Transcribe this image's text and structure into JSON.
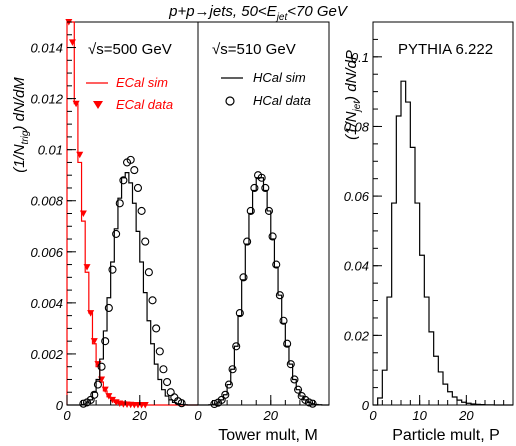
{
  "figure": {
    "title_parts": [
      "p+p→jets, 50<E",
      "jet",
      "<70 GeV"
    ],
    "left_ylabel_parts": [
      "(1/N",
      "trig",
      ") dN/dM"
    ],
    "right_ylabel_parts": [
      "(1/N",
      "jet",
      ") dN/dP"
    ],
    "xlabel_tower": "Tower mult, M",
    "xlabel_particle": "Particle mult, P",
    "colors": {
      "ecal": "#ff0000",
      "other": "#000000"
    }
  },
  "chart_data": [
    {
      "type": "line",
      "panel": "ECal / HCal tower multiplicity",
      "energy_labels": [
        "√s=500 GeV",
        "√s=510 GeV"
      ],
      "xlim": [
        0,
        36
      ],
      "ylim": [
        0,
        0.015
      ],
      "yticks": [
        0,
        0.002,
        0.004,
        0.006,
        0.008,
        0.01,
        0.012,
        0.014
      ],
      "ytick_labels": [
        "0",
        "0.002",
        "0.004",
        "0.006",
        "0.008",
        "0.01",
        "0.012",
        "0.014"
      ],
      "xticks": [
        0,
        20
      ],
      "xtick_labels": [
        "0",
        "20"
      ],
      "series": [
        {
          "name": "ECal sim",
          "style": "step",
          "color": "#ff0000",
          "x": [
            0,
            1,
            2,
            3,
            4,
            5,
            6,
            7,
            8,
            9,
            10,
            11,
            12,
            13,
            14,
            15,
            16,
            17,
            18,
            19,
            20,
            21,
            22,
            23,
            24,
            25,
            26,
            27,
            28,
            29,
            30,
            31,
            32,
            33,
            34,
            35
          ],
          "y": [
            0.015,
            0.015,
            0.0118,
            0.0095,
            0.0072,
            0.0052,
            0.0036,
            0.0024,
            0.0015,
            0.0009,
            0.00055,
            0.00032,
            0.00018,
            0.0001,
            6e-05,
            3e-05,
            2e-05,
            1e-05,
            0,
            0,
            0,
            0,
            0,
            0,
            0,
            0,
            0,
            0,
            0,
            0,
            0,
            0,
            0,
            0,
            0,
            0
          ]
        },
        {
          "name": "ECal data",
          "style": "triangle",
          "color": "#ff0000",
          "x": [
            0.5,
            1.5,
            2.5,
            3.5,
            4.5,
            5.5,
            6.5,
            7.5,
            8.5,
            9.5,
            10.5,
            11.5,
            12.5,
            13.5,
            14.5,
            15.5,
            16.5,
            17.5,
            18.5,
            19.5,
            20.5,
            21.5
          ],
          "y": [
            0.015,
            0.0142,
            0.0118,
            0.0098,
            0.0075,
            0.0054,
            0.0036,
            0.0025,
            0.0016,
            0.001,
            0.0006,
            0.00035,
            0.0002,
            0.00011,
            6e-05,
            3e-05,
            2e-05,
            1e-05,
            0,
            0,
            0,
            0
          ]
        },
        {
          "name": "HCal sim (ECal panel)",
          "style": "step",
          "color": "#000000",
          "x": [
            0,
            1,
            2,
            3,
            4,
            5,
            6,
            7,
            8,
            9,
            10,
            11,
            12,
            13,
            14,
            15,
            16,
            17,
            18,
            19,
            20,
            21,
            22,
            23,
            24,
            25,
            26,
            27,
            28,
            29,
            30,
            31,
            32,
            33,
            34,
            35
          ],
          "y": [
            0,
            0,
            0,
            0,
            2e-05,
            8e-05,
            0.0002,
            0.0005,
            0.001,
            0.0018,
            0.0029,
            0.0042,
            0.0056,
            0.0069,
            0.0081,
            0.0089,
            0.0091,
            0.0087,
            0.0079,
            0.0068,
            0.0056,
            0.0044,
            0.0033,
            0.0024,
            0.0016,
            0.001,
            0.0006,
            0.00035,
            0.0002,
            0.0001,
            5e-05,
            2e-05,
            1e-05,
            0,
            0,
            0
          ]
        },
        {
          "name": "HCal data (ECal panel)",
          "style": "circle",
          "color": "#000000",
          "x": [
            4.5,
            5.5,
            6.5,
            7.5,
            8.5,
            9.5,
            10.5,
            11.5,
            12.5,
            13.5,
            14.5,
            15.5,
            16.5,
            17.5,
            18.5,
            19.5,
            20.5,
            21.5,
            22.5,
            23.5,
            24.5,
            25.5,
            26.5,
            27.5,
            28.5,
            29.5,
            30.5,
            31.5
          ],
          "y": [
            5e-05,
            0.0001,
            0.0002,
            0.0004,
            0.0008,
            0.0015,
            0.0025,
            0.0038,
            0.0053,
            0.0067,
            0.0079,
            0.0088,
            0.0095,
            0.0096,
            0.0092,
            0.0085,
            0.0076,
            0.0064,
            0.0052,
            0.0041,
            0.003,
            0.0021,
            0.0014,
            0.0009,
            0.0005,
            0.0003,
            0.00015,
            7e-05
          ]
        }
      ]
    },
    {
      "type": "line",
      "panel": "HCal tower multiplicity",
      "xlim": [
        0,
        36
      ],
      "ylim": [
        0,
        0.015
      ],
      "xticks": [
        0,
        20
      ],
      "xtick_labels": [
        "0",
        "20"
      ],
      "series": [
        {
          "name": "HCal sim",
          "style": "step",
          "color": "#000000",
          "x": [
            0,
            1,
            2,
            3,
            4,
            5,
            6,
            7,
            8,
            9,
            10,
            11,
            12,
            13,
            14,
            15,
            16,
            17,
            18,
            19,
            20,
            21,
            22,
            23,
            24,
            25,
            26,
            27,
            28,
            29,
            30,
            31,
            32,
            33,
            34,
            35
          ],
          "y": [
            0,
            0,
            0,
            1e-05,
            3e-05,
            8e-05,
            0.0002,
            0.0004,
            0.0008,
            0.0014,
            0.0023,
            0.0035,
            0.0049,
            0.0063,
            0.0075,
            0.0084,
            0.0089,
            0.0089,
            0.0084,
            0.0076,
            0.0065,
            0.0054,
            0.0043,
            0.0032,
            0.0023,
            0.0016,
            0.001,
            0.0006,
            0.00035,
            0.0002,
            0.0001,
            5e-05,
            2e-05,
            1e-05,
            0,
            0
          ]
        },
        {
          "name": "HCal data",
          "style": "circle",
          "color": "#000000",
          "x": [
            4.5,
            5.5,
            6.5,
            7.5,
            8.5,
            9.5,
            10.5,
            11.5,
            12.5,
            13.5,
            14.5,
            15.5,
            16.5,
            17.5,
            18.5,
            19.5,
            20.5,
            21.5,
            22.5,
            23.5,
            24.5,
            25.5,
            26.5,
            27.5,
            28.5,
            29.5,
            30.5,
            31.5
          ],
          "y": [
            4e-05,
            9e-05,
            0.0002,
            0.0004,
            0.0008,
            0.0014,
            0.0023,
            0.0036,
            0.005,
            0.0064,
            0.0076,
            0.0085,
            0.009,
            0.0089,
            0.0085,
            0.0076,
            0.0066,
            0.0055,
            0.0043,
            0.0033,
            0.0024,
            0.0016,
            0.001,
            0.0006,
            0.00035,
            0.0002,
            0.0001,
            5e-05
          ]
        }
      ]
    },
    {
      "type": "line",
      "panel": "Particle multiplicity",
      "energy_label": "PYTHIA 6.222",
      "xlim": [
        0,
        30
      ],
      "ylim": [
        0,
        0.11
      ],
      "yticks": [
        0,
        0.02,
        0.04,
        0.06,
        0.08,
        0.1
      ],
      "ytick_labels": [
        "0",
        "0.02",
        "0.04",
        "0.06",
        "0.08",
        "0.1"
      ],
      "xticks": [
        0,
        10,
        20
      ],
      "xtick_labels": [
        "0",
        "10",
        "20"
      ],
      "series": [
        {
          "name": "PYTHIA 6.222",
          "style": "step",
          "color": "#000000",
          "x": [
            0,
            1,
            2,
            3,
            4,
            5,
            6,
            7,
            8,
            9,
            10,
            11,
            12,
            13,
            14,
            15,
            16,
            17,
            18,
            19,
            20,
            21,
            22,
            23,
            24,
            25,
            26,
            27,
            28,
            29
          ],
          "y": [
            0,
            0.002,
            0.01,
            0.031,
            0.058,
            0.083,
            0.093,
            0.087,
            0.074,
            0.058,
            0.043,
            0.031,
            0.021,
            0.014,
            0.0095,
            0.006,
            0.0038,
            0.0023,
            0.0014,
            0.0008,
            0.0005,
            0.0003,
            0.0002,
            0.0001,
            6e-05,
            3e-05,
            0,
            0,
            0,
            0
          ]
        }
      ]
    }
  ]
}
